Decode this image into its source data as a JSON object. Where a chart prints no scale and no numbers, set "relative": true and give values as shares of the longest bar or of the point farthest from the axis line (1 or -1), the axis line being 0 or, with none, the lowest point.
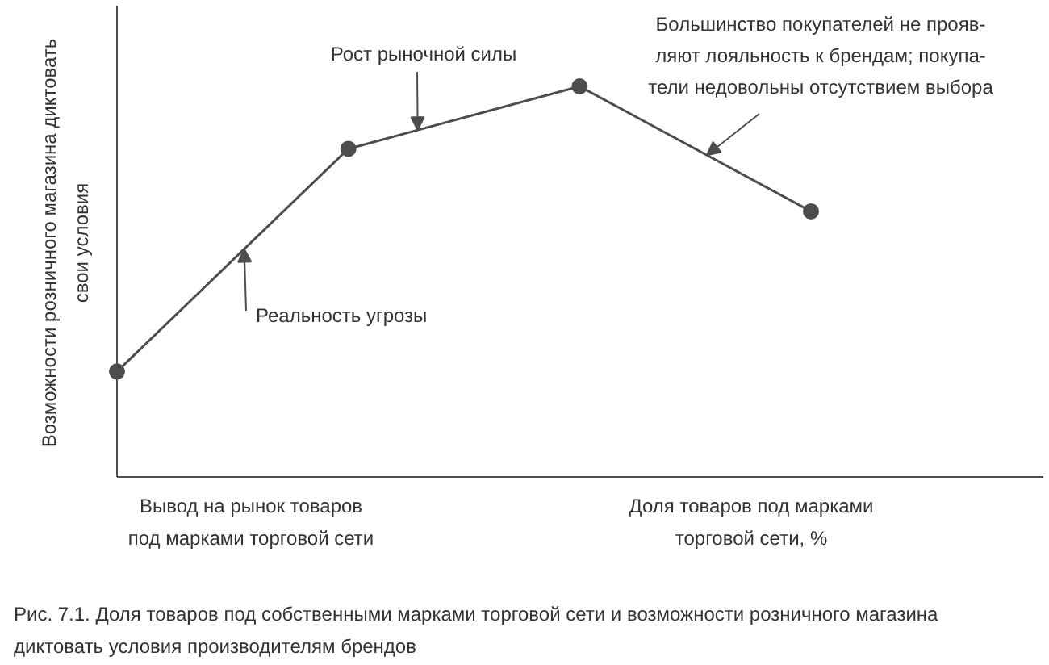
{
  "chart_data": {
    "type": "line",
    "relative": true,
    "categories": [
      null,
      null,
      null,
      null
    ],
    "series": [
      {
        "color": "#4d4d4d",
        "values": [
          0.27,
          0.84,
          1,
          0.68
        ]
      }
    ],
    "marker": "circle",
    "line_style": "solid",
    "xlabel": "Доля товаров под марками\nторговой сети, %",
    "ylabel": "Возможности розничного магазина диктовать\nсвои условия",
    "annotations": [
      "Рост рыночной силы",
      "Реальность угрозы",
      "Большинство покупателей не прояв-\nляют лояльность к брендам; покупа-\nтели недовольны отсутствием выбора",
      "Вывод на рынок товаров\nпод марками торговой сети",
      "Рис. 7.1. Доля товаров под собственными марками торговой сети и возможности розничного магазина\nдиктовать условия производителям брендов"
    ]
  }
}
